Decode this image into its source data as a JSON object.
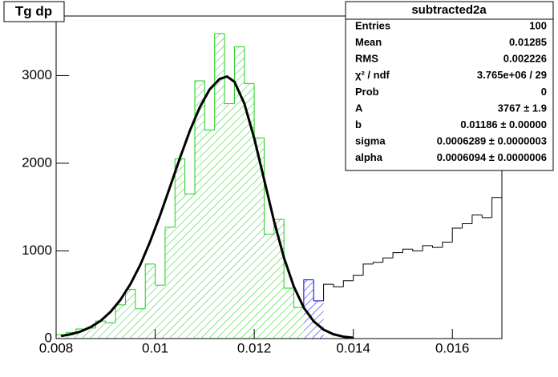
{
  "chart_data": {
    "type": "histogram",
    "title": "Tg dp",
    "bins": [
      0.008,
      0.0082,
      0.0084,
      0.0086,
      0.0088,
      0.009,
      0.0092,
      0.0094,
      0.0096,
      0.0098,
      0.01,
      0.0102,
      0.0104,
      0.0106,
      0.0108,
      0.011,
      0.0112,
      0.0114,
      0.0116,
      0.0118,
      0.012,
      0.0122,
      0.0124,
      0.0126,
      0.0128,
      0.013,
      0.0132,
      0.0134,
      0.0136,
      0.0138,
      0.014,
      0.0142,
      0.0144,
      0.0146,
      0.0148,
      0.015,
      0.0152,
      0.0154,
      0.0156,
      0.0158,
      0.016,
      0.0162,
      0.0164,
      0.0166,
      0.0168,
      0.017
    ],
    "counts": [
      45,
      70,
      110,
      120,
      200,
      180,
      385,
      560,
      340,
      850,
      610,
      1270,
      2050,
      1650,
      2940,
      2380,
      3480,
      2680,
      3330,
      2910,
      2290,
      1190,
      1360,
      575,
      355,
      670,
      430,
      620,
      590,
      660,
      720,
      850,
      870,
      920,
      980,
      1020,
      1000,
      1060,
      1040,
      1100,
      1260,
      1310,
      1410,
      1380,
      1610
    ],
    "bin_colors": [
      "#22cc22",
      "#22cc22",
      "#22cc22",
      "#22cc22",
      "#22cc22",
      "#22cc22",
      "#22cc22",
      "#22cc22",
      "#22cc22",
      "#22cc22",
      "#22cc22",
      "#22cc22",
      "#22cc22",
      "#22cc22",
      "#22cc22",
      "#22cc22",
      "#22cc22",
      "#22cc22",
      "#22cc22",
      "#22cc22",
      "#22cc22",
      "#22cc22",
      "#22cc22",
      "#22cc22",
      "#22cc22",
      "#0000cc",
      "#0000cc",
      "#000000",
      "#000000",
      "#000000",
      "#000000",
      "#000000",
      "#000000",
      "#000000",
      "#000000",
      "#000000",
      "#000000",
      "#000000",
      "#000000",
      "#000000",
      "#000000",
      "#000000",
      "#000000",
      "#000000",
      "#000000"
    ],
    "hatched": [
      true,
      true,
      true,
      true,
      true,
      true,
      true,
      true,
      true,
      true,
      true,
      true,
      true,
      true,
      true,
      true,
      true,
      true,
      true,
      true,
      true,
      true,
      true,
      true,
      true,
      true,
      true,
      false,
      false,
      false,
      false,
      false,
      false,
      false,
      false,
      false,
      false,
      false,
      false,
      false,
      false,
      false,
      false,
      false,
      false
    ],
    "fit": {
      "color": "#000000",
      "x": [
        0.0081,
        0.0083,
        0.0085,
        0.0087,
        0.0089,
        0.0091,
        0.0093,
        0.0095,
        0.0097,
        0.0099,
        0.0101,
        0.0103,
        0.0105,
        0.0107,
        0.0109,
        0.0111,
        0.0113,
        0.01145,
        0.0116,
        0.0118,
        0.012,
        0.0122,
        0.0124,
        0.0126,
        0.0128,
        0.013,
        0.0132,
        0.0134,
        0.0136,
        0.0138,
        0.014
      ],
      "values": [
        29,
        50,
        82,
        132,
        203,
        306,
        443,
        622,
        842,
        1110,
        1408,
        1732,
        2060,
        2371,
        2638,
        2843,
        2962,
        2990,
        2930,
        2682,
        2285,
        1814,
        1340,
        923,
        592,
        353,
        197,
        102,
        49,
        22,
        9
      ]
    },
    "xlim": [
      0.008,
      0.017
    ],
    "ylim": [
      0,
      3680
    ],
    "xticks": [
      0.008,
      0.01,
      0.012,
      0.014,
      0.016
    ],
    "yticks": [
      0,
      1000,
      2000,
      3000
    ],
    "stats": {
      "title": "subtracted2a",
      "rows": [
        {
          "label": "Entries",
          "value": "100"
        },
        {
          "label": "Mean",
          "value": "0.01285"
        },
        {
          "label": "RMS",
          "value": "0.002226"
        },
        {
          "label": "χ² / ndf",
          "value": "3.765e+06 / 29"
        },
        {
          "label": "Prob",
          "value": "0"
        },
        {
          "label": "A",
          "value": "3767 ± 1.9"
        },
        {
          "label": "b",
          "value": "0.01186 ± 0.00000"
        },
        {
          "label": "sigma",
          "value": "0.0006289 ± 0.0000003"
        },
        {
          "label": "alpha",
          "value": "0.0006094 ± 0.0000006"
        }
      ]
    }
  }
}
